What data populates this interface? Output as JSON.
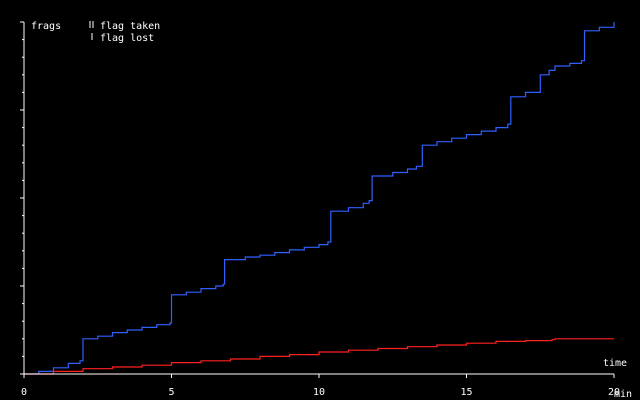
{
  "chart_data": {
    "type": "line",
    "ylabel": "frags",
    "xlabel": "time",
    "x_unit": "min",
    "xlim": [
      0,
      20
    ],
    "ylim": [
      0,
      40
    ],
    "x_ticks": [
      0,
      5,
      10,
      15,
      20
    ],
    "x_tick_labels": [
      "0",
      "5",
      "10",
      "15",
      "20"
    ],
    "legend": [
      {
        "symbol": "double-tick",
        "label": "flag taken"
      },
      {
        "symbol": "single-tick",
        "label": "flag lost"
      }
    ],
    "grid": false,
    "background": "#000000",
    "series": [
      {
        "color": "#3060ff",
        "x": [
          0.0,
          0.5,
          1.0,
          1.5,
          1.9,
          2.0,
          2.5,
          3.0,
          3.5,
          4.0,
          4.5,
          4.95,
          5.0,
          5.5,
          6.0,
          6.5,
          6.75,
          6.8,
          7.5,
          8.0,
          8.5,
          9.0,
          9.5,
          10.0,
          10.3,
          10.4,
          11.0,
          11.5,
          11.7,
          11.8,
          12.5,
          13.0,
          13.3,
          13.5,
          14.0,
          14.5,
          15.0,
          15.5,
          16.0,
          16.4,
          16.5,
          17.0,
          17.5,
          17.8,
          18.0,
          18.5,
          18.9,
          19.0,
          19.5,
          20.0
        ],
        "y": [
          0.0,
          0.3,
          0.7,
          1.2,
          1.5,
          4.0,
          4.3,
          4.7,
          5.0,
          5.3,
          5.6,
          5.8,
          9.0,
          9.3,
          9.7,
          10.0,
          10.2,
          13.0,
          13.3,
          13.5,
          13.8,
          14.1,
          14.4,
          14.7,
          15.0,
          18.5,
          18.9,
          19.4,
          19.7,
          22.5,
          22.9,
          23.3,
          23.6,
          26.0,
          26.4,
          26.8,
          27.2,
          27.6,
          28.0,
          28.4,
          31.5,
          32.0,
          34.0,
          34.5,
          35.0,
          35.3,
          35.6,
          39.0,
          39.4,
          40.0
        ]
      },
      {
        "color": "#ff2020",
        "x": [
          0.0,
          1.0,
          2.0,
          3.0,
          4.0,
          5.0,
          6.0,
          7.0,
          8.0,
          9.0,
          10.0,
          11.0,
          12.0,
          13.0,
          14.0,
          15.0,
          16.0,
          17.0,
          17.9,
          18.0,
          19.0,
          20.0
        ],
        "y": [
          0.0,
          0.3,
          0.6,
          0.8,
          1.0,
          1.3,
          1.5,
          1.7,
          2.0,
          2.2,
          2.5,
          2.7,
          2.9,
          3.1,
          3.3,
          3.5,
          3.7,
          3.8,
          3.9,
          4.0,
          4.0,
          4.0
        ]
      }
    ]
  }
}
